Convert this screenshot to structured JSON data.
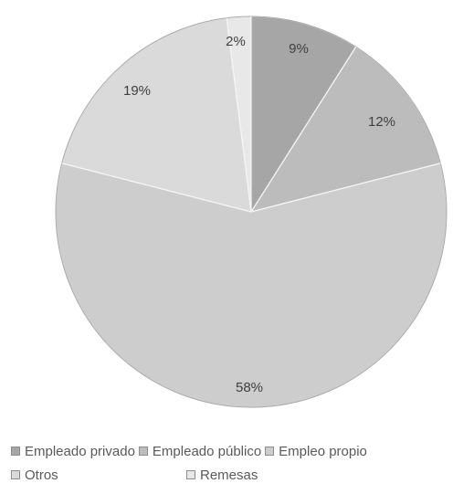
{
  "chart_data": {
    "type": "pie",
    "title": "",
    "slices": [
      {
        "label": "Empleado privado",
        "value": 9,
        "display": "9%",
        "color": "#a6a6a6"
      },
      {
        "label": "Empleado público",
        "value": 12,
        "display": "12%",
        "color": "#bcbcbc"
      },
      {
        "label": "Empleo propio",
        "value": 58,
        "display": "58%",
        "color": "#cdcdcd"
      },
      {
        "label": "Otros",
        "value": 19,
        "display": "19%",
        "color": "#dadada"
      },
      {
        "label": "Remesas",
        "value": 2,
        "display": "2%",
        "color": "#e8e8e8"
      }
    ],
    "legend_position": "bottom",
    "start_angle": "12 o'clock",
    "direction": "clockwise"
  },
  "legend": {
    "items": [
      "Empleado privado",
      "Empleado público",
      "Empleo propio",
      "Otros",
      "Remesas"
    ]
  }
}
